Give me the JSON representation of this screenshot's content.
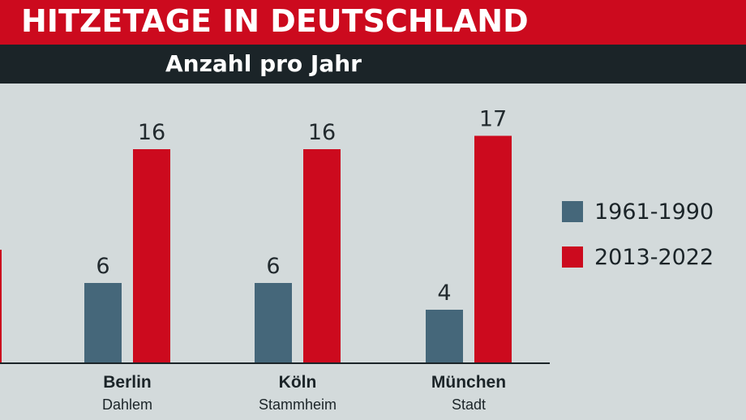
{
  "header": {
    "title": "HITZETAGE IN DEUTSCHLAND",
    "subtitle": "Anzahl pro Jahr"
  },
  "colors": {
    "series1": "#45677a",
    "series2": "#cc0a1e",
    "axis": "#1b2428"
  },
  "chart_data": {
    "type": "bar",
    "title": "HITZETAGE IN DEUTSCHLAND",
    "subtitle": "Anzahl pro Jahr",
    "categories": [
      "Berlin",
      "Köln",
      "München"
    ],
    "category_sublabels": [
      "Dahlem",
      "Stammheim",
      "Stadt"
    ],
    "series": [
      {
        "name": "1961-1990",
        "values": [
          6,
          6,
          4
        ]
      },
      {
        "name": "2013-2022",
        "values": [
          16,
          16,
          17
        ]
      }
    ],
    "xlabel": "",
    "ylabel": "",
    "ylim": [
      0,
      17
    ],
    "grid": false,
    "legend_position": "right",
    "data_labels": [
      "6",
      "16",
      "6",
      "16",
      "4",
      "17"
    ]
  }
}
